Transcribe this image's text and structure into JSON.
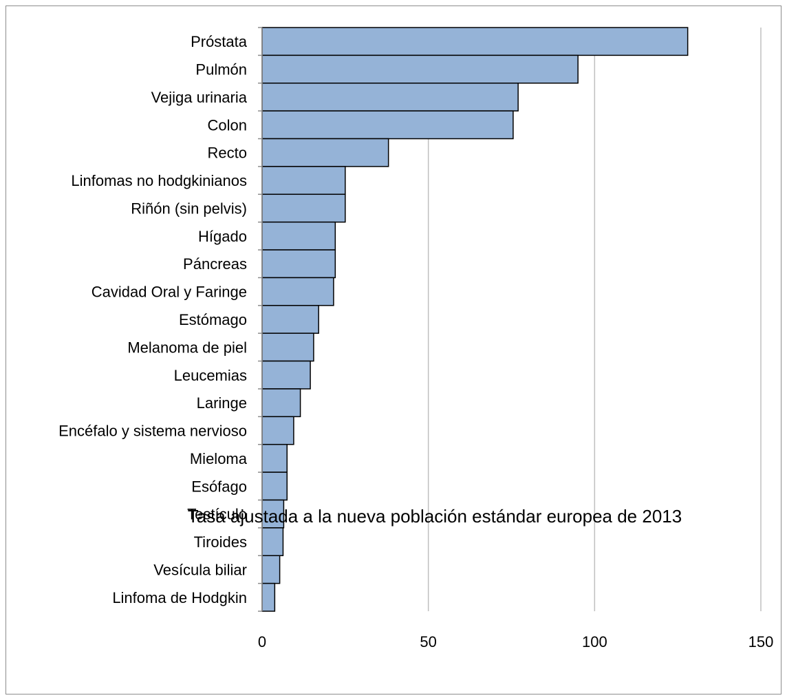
{
  "chart_data": {
    "type": "bar",
    "orientation": "horizontal",
    "title": "",
    "xlabel": "Tasa ajustada a la nueva población estándar europea de 2013",
    "ylabel": "",
    "xlim": [
      0,
      150
    ],
    "x_ticks": [
      0,
      50,
      100,
      150
    ],
    "grid": true,
    "legend": "none",
    "bar_color": "#95B3D7",
    "bar_edge_color": "#000000",
    "grid_color": "#BFBFBF",
    "categories": [
      "Próstata",
      "Pulmón",
      "Vejiga urinaria",
      "Colon",
      "Recto",
      "Linfomas no hodgkinianos",
      "Riñón (sin pelvis)",
      "Hígado",
      "Páncreas",
      "Cavidad Oral y Faringe",
      "Estómago",
      "Melanoma de piel",
      "Leucemias",
      "Laringe",
      "Encéfalo y sistema nervioso",
      "Mieloma",
      "Esófago",
      "Testículo",
      "Tiroides",
      "Vesícula biliar",
      "Linfoma de Hodgkin"
    ],
    "values": [
      128,
      95,
      77,
      75.5,
      38,
      25,
      25,
      22,
      22,
      21.5,
      17,
      15.5,
      14.5,
      11.5,
      9.5,
      7.5,
      7.5,
      6.5,
      6.3,
      5.3,
      3.8
    ]
  }
}
